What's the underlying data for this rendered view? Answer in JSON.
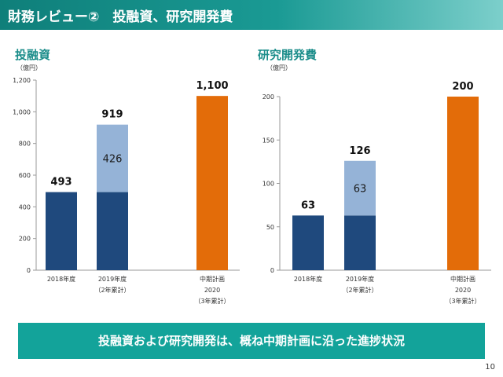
{
  "header": {
    "title": "財務レビュー②　投融資、研究開発費"
  },
  "colors": {
    "base": "#1f497d",
    "increment": "#95b3d7",
    "plan": "#e36c09",
    "accent": "#1b8d8a"
  },
  "charts": [
    {
      "title": "投融資",
      "unit": "（億円）"
    },
    {
      "title": "研究開発費",
      "unit": "（億円）"
    }
  ],
  "chart_data": [
    {
      "type": "bar",
      "title": "投融資",
      "ylabel": "（億円）",
      "ylim": [
        0,
        1200
      ],
      "yticks": [
        0,
        200,
        400,
        600,
        800,
        1000,
        1200
      ],
      "ytick_labels": [
        "0",
        "200",
        "400",
        "600",
        "800",
        "1,000",
        "1,200"
      ],
      "categories": [
        [
          "2018年度"
        ],
        [
          "2019年度",
          "（2年累計）"
        ],
        [
          "中期計画",
          "2020",
          "（3年累計）"
        ]
      ],
      "grid": false,
      "series": [
        {
          "values": [
            493,
            493,
            null
          ]
        },
        {
          "values": [
            null,
            426,
            null
          ]
        },
        {
          "values": [
            null,
            null,
            1100
          ]
        }
      ],
      "labels": {
        "totals": [
          "493",
          "919",
          "1,100"
        ],
        "inside": [
          null,
          "426",
          null
        ]
      }
    },
    {
      "type": "bar",
      "title": "研究開発費",
      "ylabel": "（億円）",
      "ylim": [
        0,
        200
      ],
      "yticks": [
        0,
        50,
        100,
        150,
        200
      ],
      "ytick_labels": [
        "0",
        "50",
        "100",
        "150",
        "200"
      ],
      "categories": [
        [
          "2018年度"
        ],
        [
          "2019年度",
          "（2年累計）"
        ],
        [
          "中期計画",
          "2020",
          "（3年累計）"
        ]
      ],
      "grid": false,
      "series": [
        {
          "values": [
            63,
            63,
            null
          ]
        },
        {
          "values": [
            null,
            63,
            null
          ]
        },
        {
          "values": [
            null,
            null,
            200
          ]
        }
      ],
      "labels": {
        "totals": [
          "63",
          "126",
          "200"
        ],
        "inside": [
          null,
          "63",
          null
        ]
      }
    }
  ],
  "banner": {
    "text": "投融資および研究開発は、概ね中期計画に沿った進捗状況"
  },
  "page": {
    "number": "10"
  }
}
